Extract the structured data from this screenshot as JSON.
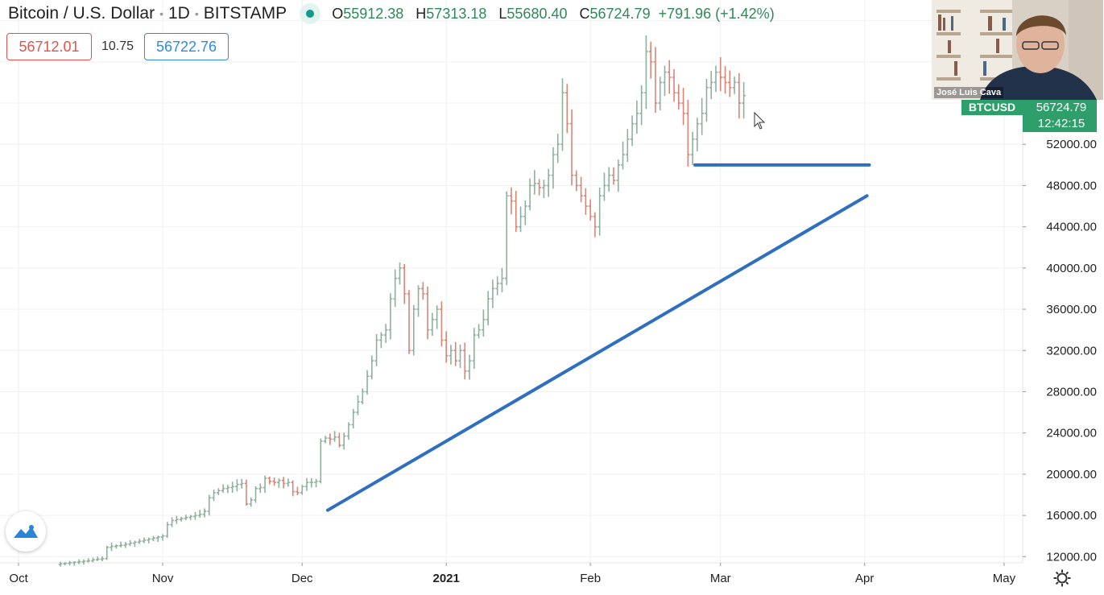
{
  "header": {
    "symbol_title": "Bitcoin / U.S. Dollar",
    "interval": "1D",
    "exchange": "BITSTAMP",
    "open_label": "O",
    "open": "55912.38",
    "high_label": "H",
    "high": "57313.18",
    "low_label": "L",
    "low": "55680.40",
    "close_label": "C",
    "close": "56724.79",
    "change": "+791.96 (+1.42%)"
  },
  "trade": {
    "sell": "56712.01",
    "spread": "10.75",
    "buy": "56722.76"
  },
  "price_tag": {
    "ticker": "BTCUSD",
    "price": "56724.79",
    "countdown": "12:42:15"
  },
  "presenter": {
    "name": "José Luis Cava"
  },
  "colors": {
    "up": "#8fb09c",
    "down": "#d98576",
    "trendline": "#2f6fc0",
    "tag": "#2e9e6a"
  },
  "icons": {
    "logo": "tradingview-logo-icon",
    "settings": "gear-icon",
    "live": "live-dot-icon",
    "cursor": "cursor-icon"
  },
  "chart_data": {
    "type": "ohlc_bar",
    "title": "Bitcoin / U.S. Dollar · 1D · BITSTAMP",
    "ylim": [
      11400,
      66000
    ],
    "y_ticks": [
      12000,
      16000,
      20000,
      24000,
      28000,
      32000,
      36000,
      40000,
      44000,
      48000,
      52000
    ],
    "y_tick_labels": [
      "12000.00",
      "16000.00",
      "20000.00",
      "24000.00",
      "28000.00",
      "32000.00",
      "36000.00",
      "40000.00",
      "44000.00",
      "48000.00",
      "52000.00"
    ],
    "x_labels": [
      {
        "label": "Oct",
        "day": 0
      },
      {
        "label": "Nov",
        "day": 31
      },
      {
        "label": "Dec",
        "day": 61
      },
      {
        "label": "2021",
        "day": 92
      },
      {
        "label": "Feb",
        "day": 123
      },
      {
        "label": "Mar",
        "day": 151
      },
      {
        "label": "Apr",
        "day": 182
      },
      {
        "label": "May",
        "day": 212
      }
    ],
    "x_day_range": [
      -4,
      216
    ],
    "first_bar_day": 9,
    "closes": [
      11300,
      11350,
      11400,
      11450,
      11500,
      11550,
      11600,
      11700,
      11750,
      11800,
      12900,
      13000,
      13050,
      13100,
      13200,
      13300,
      13400,
      13500,
      13600,
      13700,
      13800,
      13900,
      14000,
      15100,
      15500,
      15600,
      15700,
      15800,
      15900,
      16000,
      16100,
      16400,
      17700,
      18200,
      18400,
      18600,
      18700,
      18800,
      19000,
      19100,
      17100,
      17500,
      18600,
      18700,
      19600,
      19300,
      19200,
      19400,
      19100,
      19200,
      18300,
      18200,
      18800,
      19200,
      19200,
      19300,
      23200,
      23500,
      23400,
      23600,
      22800,
      23700,
      24800,
      26000,
      27000,
      28000,
      29500,
      31000,
      33000,
      33500,
      34000,
      37000,
      39000,
      40000,
      37500,
      32000,
      36000,
      38000,
      37500,
      34000,
      35000,
      36000,
      33000,
      31500,
      32000,
      31000,
      32000,
      30000,
      31000,
      33500,
      34000,
      35000,
      37000,
      38000,
      38500,
      39000,
      47000,
      46500,
      44000,
      45000,
      46000,
      48000,
      48200,
      47800,
      48000,
      49000,
      51000,
      52000,
      57000,
      54000,
      49000,
      48000,
      47000,
      46000,
      45000,
      44000,
      47000,
      48000,
      49000,
      48500,
      50000,
      51000,
      52500,
      54000,
      55000,
      57000,
      61000,
      60000,
      56000,
      58000,
      59000,
      58500,
      57000,
      56000,
      55000,
      51000,
      52500,
      54000,
      55000,
      57500,
      58000,
      59000,
      58500,
      58000,
      57500,
      58000,
      56000,
      56724.79
    ],
    "trendlines": [
      {
        "name": "rising-support",
        "from": {
          "day": 66.5,
          "price": 16500
        },
        "to": {
          "day": 182.5,
          "price": 47000
        }
      },
      {
        "name": "horizontal-support",
        "from": {
          "day": 145.5,
          "price": 50000
        },
        "to": {
          "day": 183,
          "price": 50000
        }
      }
    ]
  }
}
